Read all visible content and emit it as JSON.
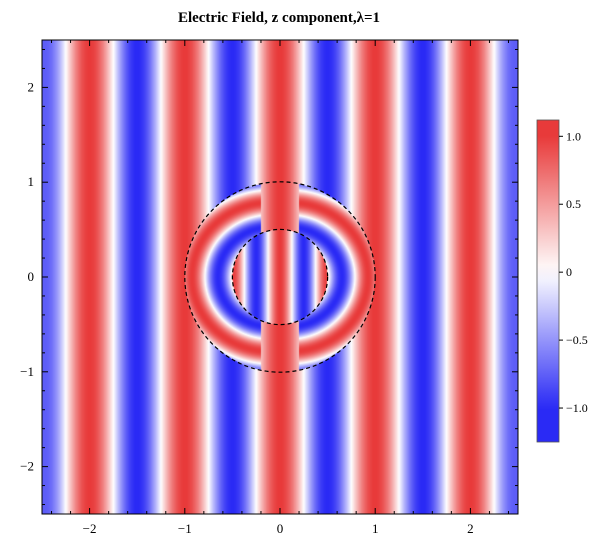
{
  "chart_data": {
    "type": "heatmap",
    "title": "Electric Field, z component,λ=1",
    "xlabel": "",
    "ylabel": "",
    "xlim": [
      -2.5,
      2.5
    ],
    "ylim": [
      -2.5,
      2.5
    ],
    "x_ticks": [
      -2,
      -1,
      0,
      1,
      2
    ],
    "x_tick_labels": [
      "−2",
      "−1",
      "0",
      "1",
      "2"
    ],
    "y_ticks": [
      -2,
      -1,
      0,
      1,
      2
    ],
    "y_tick_labels": [
      "−2",
      "−1",
      "0",
      "1",
      "2"
    ],
    "wavelength": 1,
    "field": "cos(2π·x/λ) plane wave along x, perturbed inside the dashed circles",
    "outer_circle": {
      "center": [
        0,
        0
      ],
      "radius": 1.0,
      "style": "dashed"
    },
    "inner_circle": {
      "center": [
        0,
        0
      ],
      "radius": 0.5,
      "style": "dashed"
    },
    "colorbar": {
      "range": [
        -1.25,
        1.12
      ],
      "ticks": [
        1.0,
        0.5,
        0,
        -0.5,
        -1.0
      ],
      "tick_labels": [
        "1.0",
        "0.5",
        "0",
        "−0.5",
        "−1.0"
      ],
      "colors": {
        "min": "#2a2af5",
        "mid": "#ffffff",
        "max": "#e83a3a"
      }
    },
    "grid": false,
    "legend": "colorbar-right"
  }
}
